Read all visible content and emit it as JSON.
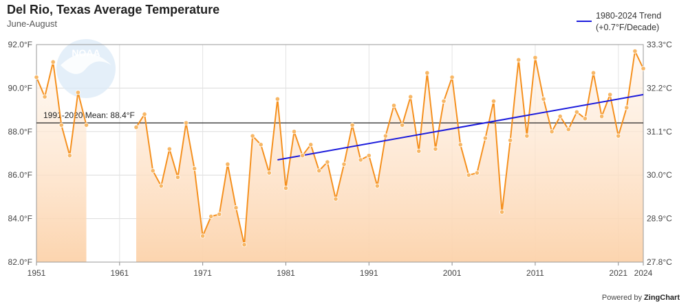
{
  "header": {
    "title": "Del Rio, Texas Average Temperature",
    "subtitle": "June-August"
  },
  "legend": {
    "line1": "1980-2024 Trend",
    "line2": "(+0.7°F/Decade)",
    "color": "#1a1adc"
  },
  "logo": {
    "text": "NOAA"
  },
  "credit": {
    "prefix": "Powered by",
    "brand": "ZingChart"
  },
  "colors": {
    "series": "#f5901e",
    "marker": "#f7b766",
    "fill_top": "#fcd9b6",
    "mean": "#222222",
    "trend": "#1a1adc"
  },
  "chart_data": {
    "type": "line",
    "title": "Del Rio, Texas Average Temperature",
    "subtitle": "June-August",
    "x_range": [
      1951,
      2024
    ],
    "x_ticks": [
      1951,
      1961,
      1971,
      1981,
      1991,
      2001,
      2011,
      2021,
      2024
    ],
    "y_range_f": [
      82,
      92
    ],
    "y_ticks_f": [
      "82.0°F",
      "84.0°F",
      "86.0°F",
      "88.0°F",
      "90.0°F",
      "92.0°F"
    ],
    "y_ticks_c": [
      "27.8°C",
      "28.9°C",
      "30.0°C",
      "31.1°C",
      "32.2°C",
      "33.3°C"
    ],
    "grid": true,
    "series": [
      {
        "values": [
          [
            1951,
            90.5
          ],
          [
            1952,
            89.6
          ],
          [
            1953,
            91.2
          ],
          [
            1954,
            88.3
          ],
          [
            1955,
            86.9
          ],
          [
            1956,
            89.8
          ],
          [
            1957,
            88.3
          ],
          [
            1963,
            88.2
          ],
          [
            1964,
            88.8
          ],
          [
            1965,
            86.2
          ],
          [
            1966,
            85.5
          ],
          [
            1967,
            87.2
          ],
          [
            1968,
            85.9
          ],
          [
            1969,
            88.4
          ],
          [
            1970,
            86.3
          ],
          [
            1971,
            83.2
          ],
          [
            1972,
            84.1
          ],
          [
            1973,
            84.2
          ],
          [
            1974,
            86.5
          ],
          [
            1975,
            84.5
          ],
          [
            1976,
            82.8
          ],
          [
            1977,
            87.8
          ],
          [
            1978,
            87.4
          ],
          [
            1979,
            86.1
          ],
          [
            1980,
            89.5
          ],
          [
            1981,
            85.4
          ],
          [
            1982,
            88.0
          ],
          [
            1983,
            86.9
          ],
          [
            1984,
            87.4
          ],
          [
            1985,
            86.2
          ],
          [
            1986,
            86.6
          ],
          [
            1987,
            84.9
          ],
          [
            1988,
            86.5
          ],
          [
            1989,
            88.3
          ],
          [
            1990,
            86.7
          ],
          [
            1991,
            86.9
          ],
          [
            1992,
            85.5
          ],
          [
            1993,
            87.8
          ],
          [
            1994,
            89.2
          ],
          [
            1995,
            88.3
          ],
          [
            1996,
            89.6
          ],
          [
            1997,
            87.1
          ],
          [
            1998,
            90.7
          ],
          [
            1999,
            87.2
          ],
          [
            2000,
            89.4
          ],
          [
            2001,
            90.5
          ],
          [
            2002,
            87.4
          ],
          [
            2003,
            86.0
          ],
          [
            2004,
            86.1
          ],
          [
            2005,
            87.7
          ],
          [
            2006,
            89.4
          ],
          [
            2007,
            84.3
          ],
          [
            2008,
            87.6
          ],
          [
            2009,
            91.3
          ],
          [
            2010,
            87.8
          ],
          [
            2011,
            91.4
          ],
          [
            2012,
            89.5
          ],
          [
            2013,
            88.0
          ],
          [
            2014,
            88.7
          ],
          [
            2015,
            88.1
          ],
          [
            2016,
            88.9
          ],
          [
            2017,
            88.6
          ],
          [
            2018,
            90.7
          ],
          [
            2019,
            88.7
          ],
          [
            2020,
            89.7
          ],
          [
            2021,
            87.8
          ],
          [
            2022,
            89.1
          ],
          [
            2023,
            91.7
          ],
          [
            2024,
            90.9
          ]
        ]
      }
    ],
    "mean": {
      "value": 88.4,
      "label": "1991-2020 Mean: 88.4°F"
    },
    "trend": {
      "label": "1980-2024 Trend (+0.7°F/Decade)",
      "start": [
        1980,
        86.7
      ],
      "end": [
        2024,
        89.7
      ]
    }
  }
}
